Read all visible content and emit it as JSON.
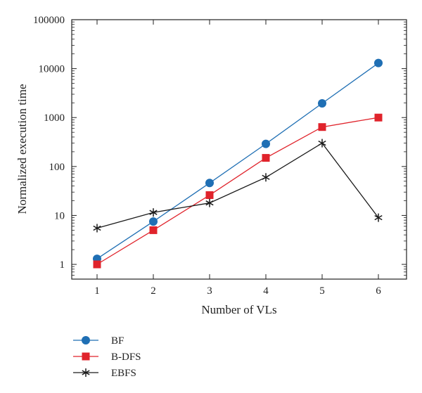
{
  "chart_data": {
    "type": "line",
    "title": "",
    "xlabel": "Number of VLs",
    "ylabel": "Normalized execution time",
    "x": [
      1,
      2,
      3,
      4,
      5,
      6
    ],
    "xlim": [
      0.55,
      6.5
    ],
    "ylim": [
      0.5,
      100000
    ],
    "yscale": "log",
    "x_ticks": [
      "1",
      "2",
      "3",
      "4",
      "5",
      "6"
    ],
    "y_ticks": [
      "1",
      "10",
      "100",
      "1000",
      "10000",
      "100000"
    ],
    "y_tick_values": [
      1,
      10,
      100,
      1000,
      10000,
      100000
    ],
    "grid": false,
    "legend_position": "bottom-left",
    "series": [
      {
        "name": "BF",
        "color": "#1f6fb4",
        "marker": "circle",
        "values": [
          1.3,
          7.5,
          46,
          290,
          1950,
          13000
        ]
      },
      {
        "name": "B-DFS",
        "color": "#e0232b",
        "marker": "square",
        "values": [
          1.0,
          5.0,
          26,
          150,
          640,
          1000
        ]
      },
      {
        "name": "EBFS",
        "color": "#1a1a1a",
        "marker": "asterisk",
        "values": [
          5.5,
          11.5,
          18,
          60,
          300,
          9
        ]
      }
    ]
  }
}
